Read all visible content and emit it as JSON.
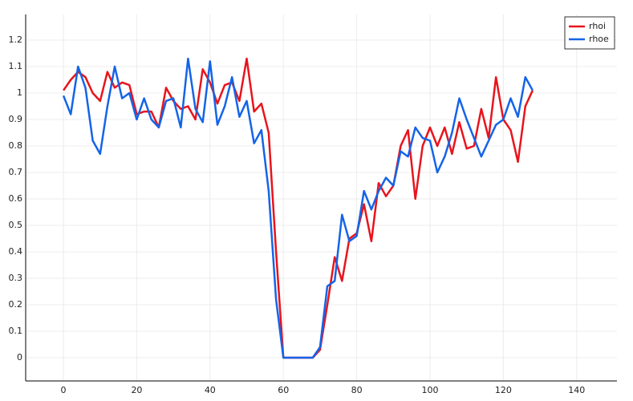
{
  "chart_data": {
    "type": "line",
    "x": [
      0,
      2,
      4,
      6,
      8,
      10,
      12,
      14,
      16,
      18,
      20,
      22,
      24,
      26,
      28,
      30,
      32,
      34,
      36,
      38,
      40,
      42,
      44,
      46,
      48,
      50,
      52,
      54,
      56,
      58,
      60,
      62,
      64,
      66,
      68,
      70,
      72,
      74,
      76,
      78,
      80,
      82,
      84,
      86,
      88,
      90,
      92,
      94,
      96,
      98,
      100,
      102,
      104,
      106,
      108,
      110,
      112,
      114,
      116,
      118,
      120,
      122,
      124,
      126,
      128
    ],
    "series": [
      {
        "name": "rhoi",
        "color": "#e8141c",
        "values": [
          1.01,
          1.05,
          1.08,
          1.06,
          1.0,
          0.97,
          1.08,
          1.02,
          1.04,
          1.03,
          0.92,
          0.93,
          0.93,
          0.87,
          1.02,
          0.97,
          0.94,
          0.95,
          0.9,
          1.09,
          1.04,
          0.96,
          1.03,
          1.04,
          0.97,
          1.13,
          0.93,
          0.96,
          0.85,
          0.4,
          0.0,
          0,
          0,
          0,
          0,
          0.03,
          0.2,
          0.38,
          0.29,
          0.45,
          0.47,
          0.58,
          0.44,
          0.66,
          0.61,
          0.65,
          0.8,
          0.86,
          0.6,
          0.8,
          0.87,
          0.8,
          0.87,
          0.77,
          0.89,
          0.79,
          0.8,
          0.94,
          0.83,
          1.06,
          0.9,
          0.86,
          0.74,
          0.95,
          1.01
        ]
      },
      {
        "name": "rhoe",
        "color": "#1464e8",
        "values": [
          0.99,
          0.92,
          1.1,
          1.02,
          0.82,
          0.77,
          0.95,
          1.1,
          0.98,
          1.0,
          0.9,
          0.98,
          0.9,
          0.87,
          0.97,
          0.98,
          0.87,
          1.13,
          0.94,
          0.89,
          1.12,
          0.88,
          0.95,
          1.06,
          0.91,
          0.97,
          0.81,
          0.86,
          0.63,
          0.22,
          0.0,
          0,
          0,
          0,
          0,
          0.04,
          0.27,
          0.29,
          0.54,
          0.44,
          0.46,
          0.63,
          0.56,
          0.63,
          0.68,
          0.65,
          0.78,
          0.76,
          0.87,
          0.83,
          0.82,
          0.7,
          0.76,
          0.85,
          0.98,
          0.9,
          0.83,
          0.76,
          0.82,
          0.88,
          0.9,
          0.98,
          0.91,
          1.06,
          1.01
        ]
      }
    ],
    "xlim": [
      -10.3,
      151
    ],
    "xticks": [
      0,
      20,
      40,
      60,
      80,
      100,
      120,
      140
    ],
    "ylim": [
      -0.088,
      1.297
    ],
    "yticks": [
      0,
      0.1,
      0.2,
      0.3,
      0.4,
      0.5,
      0.6,
      0.7,
      0.8,
      0.9,
      1,
      1.1,
      1.2
    ],
    "grid": true,
    "legend": "top-right"
  }
}
